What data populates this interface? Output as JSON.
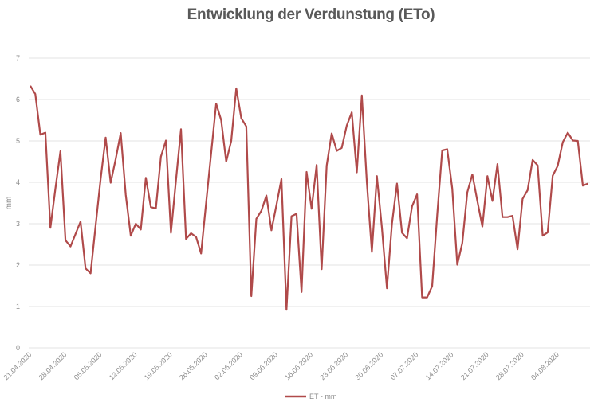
{
  "chart_data": {
    "type": "line",
    "title": "Entwicklung der Verdunstung (ETo)",
    "xlabel": "",
    "ylabel": "mm",
    "ylim": [
      0,
      7
    ],
    "yticks": [
      "0",
      "1",
      "2",
      "3",
      "4",
      "5",
      "6",
      "7"
    ],
    "grid": true,
    "legend_position": "bottom",
    "start_date": "21.04.2020",
    "x_tick_labels": [
      "21.04.2020",
      "28.04.2020",
      "05.05.2020",
      "12.05.2020",
      "19.05.2020",
      "26.05.2020",
      "02.06.2020",
      "09.06.2020",
      "16.06.2020",
      "23.06.2020",
      "30.06.2020",
      "07.07.2020",
      "14.07.2020",
      "21.07.2020",
      "28.07.2020",
      "04.08.2020"
    ],
    "x_tick_interval_days": 7,
    "series": [
      {
        "name": "ET - mm",
        "color": "#b04a4a",
        "values": [
          6.33,
          6.13,
          5.15,
          5.2,
          2.9,
          3.85,
          4.75,
          2.6,
          2.45,
          2.75,
          3.05,
          1.92,
          1.8,
          2.95,
          4.08,
          5.08,
          3.99,
          4.56,
          5.19,
          3.7,
          2.71,
          3.0,
          2.86,
          4.11,
          3.4,
          3.37,
          4.62,
          5.01,
          2.78,
          4.05,
          5.28,
          2.63,
          2.77,
          2.68,
          2.28,
          3.5,
          4.7,
          5.9,
          5.5,
          4.5,
          5.0,
          6.27,
          5.55,
          5.35,
          1.25,
          3.12,
          3.31,
          3.68,
          2.84,
          3.45,
          4.08,
          0.92,
          3.18,
          3.24,
          1.35,
          4.25,
          3.36,
          4.42,
          1.9,
          4.4,
          5.18,
          4.76,
          4.83,
          5.37,
          5.69,
          4.24,
          6.1,
          4.0,
          2.32,
          4.15,
          2.9,
          1.44,
          3.0,
          3.97,
          2.78,
          2.65,
          3.42,
          3.71,
          1.22,
          1.22,
          1.49,
          3.2,
          4.77,
          4.8,
          3.85,
          2.01,
          2.53,
          3.76,
          4.19,
          3.55,
          2.93,
          4.15,
          3.55,
          4.44,
          3.16,
          3.16,
          3.19,
          2.38,
          3.6,
          3.81,
          4.54,
          4.41,
          2.71,
          2.79,
          4.16,
          4.4,
          4.97,
          5.2,
          5.01,
          5.0,
          3.92,
          3.97
        ]
      }
    ]
  }
}
